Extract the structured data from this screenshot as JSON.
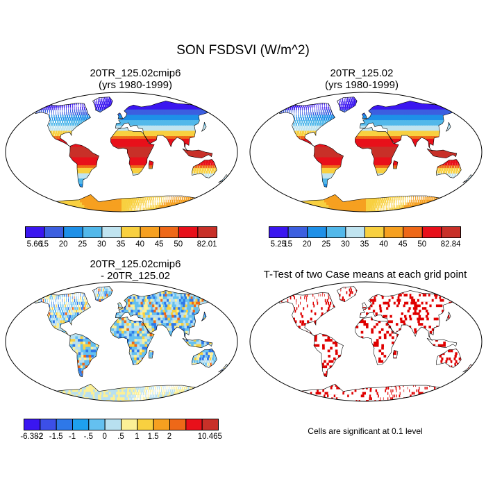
{
  "title": "SON FSDSVI (W/m^2)",
  "panels": [
    {
      "id": "p1",
      "title_line1": "20TR_125.02cmip6",
      "title_line2": "(yrs 1980-1999)"
    },
    {
      "id": "p2",
      "title_line1": "20TR_125.02",
      "title_line2": "(yrs 1980-1999)"
    },
    {
      "id": "p3",
      "title_line1": "20TR_125.02cmip6",
      "title_line2": "- 20TR_125.02"
    },
    {
      "id": "p4",
      "title_line1": "T-Test of two Case means at each grid point",
      "title_line2": ""
    }
  ],
  "colorbars": [
    {
      "id": "cb1",
      "labels": [
        "5.66",
        "15",
        "20",
        "25",
        "30",
        "35",
        "40",
        "45",
        "50",
        "82.01"
      ],
      "colors": [
        "#3a16f0",
        "#3c5fe0",
        "#1e90e8",
        "#52b8ea",
        "#c0e4f0",
        "#f8d040",
        "#f6a020",
        "#ee6818",
        "#e8101a",
        "#c83028"
      ]
    },
    {
      "id": "cb2",
      "labels": [
        "5.25",
        "15",
        "20",
        "25",
        "30",
        "35",
        "40",
        "45",
        "50",
        "82.84"
      ],
      "colors": [
        "#3a16f0",
        "#3c5fe0",
        "#1e90e8",
        "#52b8ea",
        "#c0e4f0",
        "#f8d040",
        "#f6a020",
        "#ee6818",
        "#e8101a",
        "#c83028"
      ]
    },
    {
      "id": "cb3",
      "labels": [
        "-6.382",
        "-2",
        "-1.5",
        "-1",
        "-.5",
        "0",
        ".5",
        "1",
        "1.5",
        "2",
        "10.465"
      ],
      "colors": [
        "#3a16f0",
        "#3c4fe8",
        "#2e78e8",
        "#1ea0ee",
        "#64c0f0",
        "#b8e0f0",
        "#fcf096",
        "#f8d040",
        "#f6a020",
        "#ee6818",
        "#e8101a",
        "#c83028"
      ]
    }
  ],
  "note": "Cells are significant at 0.1 level",
  "significance_color": "#e00000",
  "fields": {
    "mean": "FSDSVI climatology, warm in tropics (red) and cool at high latitudes (blue)",
    "diff": "difference field, mostly light blue with scattered orange/red",
    "ttest": "red significant cells"
  }
}
